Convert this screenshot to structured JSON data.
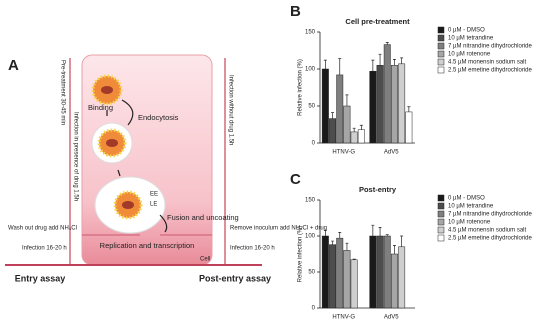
{
  "diagram": {
    "label": "A",
    "binding": "Binding",
    "endocytosis": "Endocytosis",
    "early_endosome": "EE",
    "late_endosome": "LE",
    "fusion": "Fusion and uncoating",
    "replication": "Replication and transcription",
    "cell": "Cell",
    "pretreatment": "Pre-treatment 30-45 min",
    "infection_with_drug": "Infection in presence of drug 1.5h",
    "infection_without_drug": "Infection without drug 1.5h",
    "entry_step": "Wash out drug add NH₄Cl",
    "entry_infection": "Infection 16-20 h",
    "post_step": "Remove inoculum add NH₄Cl + drug",
    "post_infection": "Infection 16-20 h",
    "entry_assay": "Entry assay",
    "post_entry_assay": "Post-entry assay"
  },
  "chart_data": [
    {
      "type": "bar",
      "panel": "B",
      "title": "Cell pre-treatment",
      "y_label": "Relative infection (%)",
      "categories": [
        "HTNV-G",
        "AdV5"
      ],
      "ylim": [
        0,
        150
      ],
      "yticks": [
        0,
        50,
        100,
        150
      ],
      "series": [
        {
          "name": "0 µM - DMSO",
          "color": "#1a1a1a",
          "values": [
            100,
            97
          ],
          "errors": [
            12,
            15
          ]
        },
        {
          "name": "10 µM tetrandine",
          "color": "#4d4d4d",
          "values": [
            33,
            105
          ],
          "errors": [
            8,
            15
          ]
        },
        {
          "name": "7 µM nitrandine dihydrochloride",
          "color": "#7f7f7f",
          "values": [
            92,
            133
          ],
          "errors": [
            22,
            3
          ]
        },
        {
          "name": "10 µM rotenone",
          "color": "#a6a6a6",
          "values": [
            50,
            105
          ],
          "errors": [
            15,
            8
          ]
        },
        {
          "name": "4.5 µM monensin sodium salt",
          "color": "#cfcfcf",
          "values": [
            15,
            107
          ],
          "errors": [
            5,
            8
          ]
        },
        {
          "name": "2.5 µM emetine dihydrochloride",
          "color": "#ffffff",
          "values": [
            18,
            42
          ],
          "errors": [
            6,
            7
          ]
        }
      ]
    },
    {
      "type": "bar",
      "panel": "C",
      "title": "Post-entry",
      "y_label": "Relative infection (%)",
      "categories": [
        "HTNV-G",
        "AdV5"
      ],
      "ylim": [
        0,
        150
      ],
      "yticks": [
        0,
        50,
        100,
        150
      ],
      "series": [
        {
          "name": "0 µM - DMSO",
          "color": "#1a1a1a",
          "values": [
            100,
            100
          ],
          "errors": [
            8,
            15
          ]
        },
        {
          "name": "10 µM tetrandine",
          "color": "#4d4d4d",
          "values": [
            88,
            100
          ],
          "errors": [
            5,
            12
          ]
        },
        {
          "name": "7 µM nitrandine dihydrochloride",
          "color": "#7f7f7f",
          "values": [
            97,
            100
          ],
          "errors": [
            8,
            2
          ]
        },
        {
          "name": "10 µM rotenone",
          "color": "#a6a6a6",
          "values": [
            80,
            75
          ],
          "errors": [
            10,
            12
          ]
        },
        {
          "name": "4.5 µM monensin sodium salt",
          "color": "#cfcfcf",
          "values": [
            67,
            85
          ],
          "errors": [
            1,
            15
          ]
        },
        {
          "name": "2.5 µM emetine dihydrochloride",
          "color": "#ffffff",
          "values": [
            null,
            null
          ],
          "errors": [
            null,
            null
          ]
        }
      ]
    }
  ]
}
